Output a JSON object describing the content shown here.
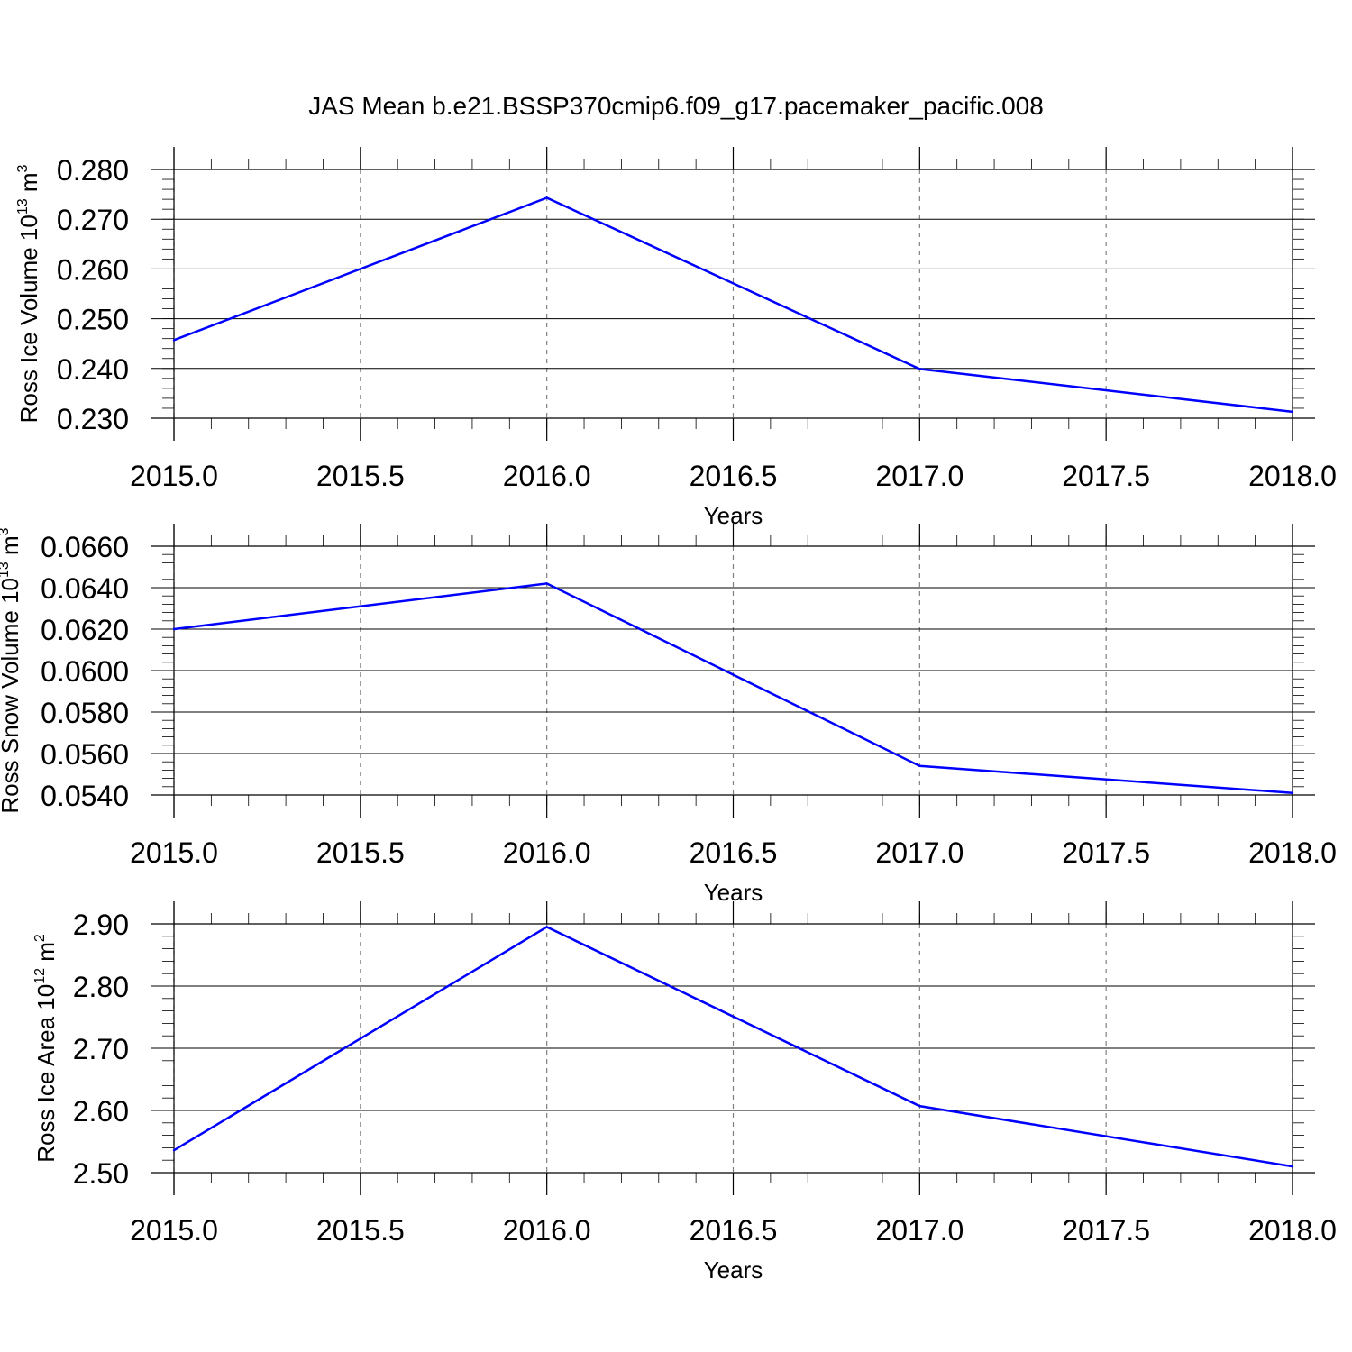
{
  "title": "JAS Mean b.e21.BSSP370cmip6.f09_g17.pacemaker_pacific.008",
  "line_color": "#0000ff",
  "axis_color": "#000000",
  "grid_color": "#808080",
  "chart_data": [
    {
      "type": "line",
      "ylabel": "Ross Ice Volume",
      "ylabel_unit_base": "10",
      "ylabel_unit_exp": "13",
      "ylabel_unit_tail": "m",
      "ylabel_unit_tail_exp": "3",
      "xlabel": "Years",
      "xlim": [
        2015.0,
        2018.0
      ],
      "ylim": [
        0.23,
        0.28
      ],
      "x_ticks": [
        "2015.0",
        "2015.5",
        "2016.0",
        "2016.5",
        "2017.0",
        "2017.5",
        "2018.0"
      ],
      "y_ticks": [
        "0.230",
        "0.240",
        "0.250",
        "0.260",
        "0.270",
        "0.280"
      ],
      "grid": "vertical dashed at major x ticks",
      "x": [
        2015,
        2016,
        2017,
        2018
      ],
      "y": [
        0.2457,
        0.2743,
        0.2399,
        0.2313
      ]
    },
    {
      "type": "line",
      "ylabel": "Ross Snow Volume",
      "ylabel_unit_base": "10",
      "ylabel_unit_exp": "13",
      "ylabel_unit_tail": "m",
      "ylabel_unit_tail_exp": "3",
      "xlabel": "Years",
      "xlim": [
        2015.0,
        2018.0
      ],
      "ylim": [
        0.054,
        0.066
      ],
      "x_ticks": [
        "2015.0",
        "2015.5",
        "2016.0",
        "2016.5",
        "2017.0",
        "2017.5",
        "2018.0"
      ],
      "y_ticks": [
        "0.0540",
        "0.0560",
        "0.0580",
        "0.0600",
        "0.0620",
        "0.0640",
        "0.0660"
      ],
      "grid": "vertical dashed at major x ticks",
      "x": [
        2015,
        2016,
        2017,
        2018
      ],
      "y": [
        0.062,
        0.0642,
        0.0554,
        0.0541
      ]
    },
    {
      "type": "line",
      "ylabel": "Ross Ice Area",
      "ylabel_unit_base": "10",
      "ylabel_unit_exp": "12",
      "ylabel_unit_tail": "m",
      "ylabel_unit_tail_exp": "2",
      "xlabel": "Years",
      "xlim": [
        2015.0,
        2018.0
      ],
      "ylim": [
        2.5,
        2.9
      ],
      "x_ticks": [
        "2015.0",
        "2015.5",
        "2016.0",
        "2016.5",
        "2017.0",
        "2017.5",
        "2018.0"
      ],
      "y_ticks": [
        "2.50",
        "2.60",
        "2.70",
        "2.80",
        "2.90"
      ],
      "grid": "vertical dashed at major x ticks",
      "x": [
        2015,
        2016,
        2017,
        2018
      ],
      "y": [
        2.536,
        2.895,
        2.607,
        2.51
      ]
    }
  ]
}
